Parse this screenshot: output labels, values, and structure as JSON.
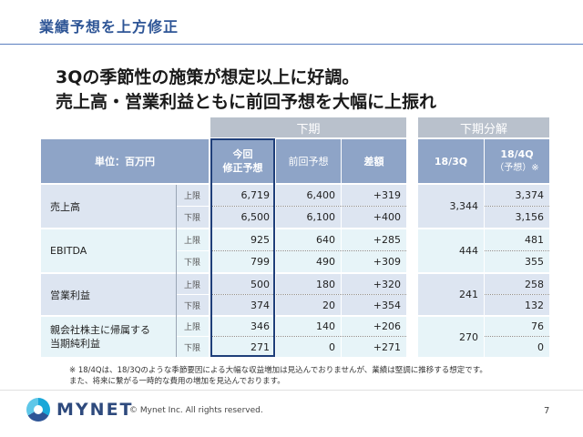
{
  "slide_title": "業績予想を上方修正",
  "headline": [
    "3Qの季節性の施策が想定以上に好調。",
    "売上高・営業利益ともに前回予想を大幅に上振れ"
  ],
  "group_headers": {
    "left": "下期",
    "right": "下期分解"
  },
  "col_headers": {
    "unit": "単位：百万円",
    "current": "今回\n修正予想",
    "previous": "前回予想",
    "diff": "差額",
    "q3": "18/3Q",
    "q4": "18/4Q",
    "q4_note": "（予想）※"
  },
  "sub_labels": {
    "upper": "上限",
    "lower": "下限"
  },
  "rows": [
    {
      "label": "売上高",
      "upper": {
        "current": "6,719",
        "previous": "6,400",
        "diff": "+319"
      },
      "lower": {
        "current": "6,500",
        "previous": "6,100",
        "diff": "+400"
      },
      "q3": "3,344",
      "q4_upper": "3,374",
      "q4_lower": "3,156"
    },
    {
      "label": "EBITDA",
      "upper": {
        "current": "925",
        "previous": "640",
        "diff": "+285"
      },
      "lower": {
        "current": "799",
        "previous": "490",
        "diff": "+309"
      },
      "q3": "444",
      "q4_upper": "481",
      "q4_lower": "355"
    },
    {
      "label": "営業利益",
      "upper": {
        "current": "500",
        "previous": "180",
        "diff": "+320"
      },
      "lower": {
        "current": "374",
        "previous": "20",
        "diff": "+354"
      },
      "q3": "241",
      "q4_upper": "258",
      "q4_lower": "132"
    },
    {
      "label": "親会社株主に帰属する\n当期純利益",
      "upper": {
        "current": "346",
        "previous": "140",
        "diff": "+206"
      },
      "lower": {
        "current": "271",
        "previous": "0",
        "diff": "+271"
      },
      "q3": "270",
      "q4_upper": "76",
      "q4_lower": "0"
    }
  ],
  "notes": [
    "※ 18/4Qは、18/3Qのような季節要因による大幅な収益増加は見込んでおりませんが、業績は堅調に推移する想定です。",
    "また、将来に繋がる一時的な費用の増加を見込んでおります。"
  ],
  "footer": {
    "brand": "MYNET",
    "copyright": "© Mynet Inc. All rights reserved.",
    "page_number": "7"
  },
  "colors": {
    "accent": "#2e5596",
    "header_bg": "#8ea4c7",
    "row_blue": "#dde5f1",
    "row_cyan": "#e7f4f8",
    "highlight_border": "#1f3f7a"
  }
}
